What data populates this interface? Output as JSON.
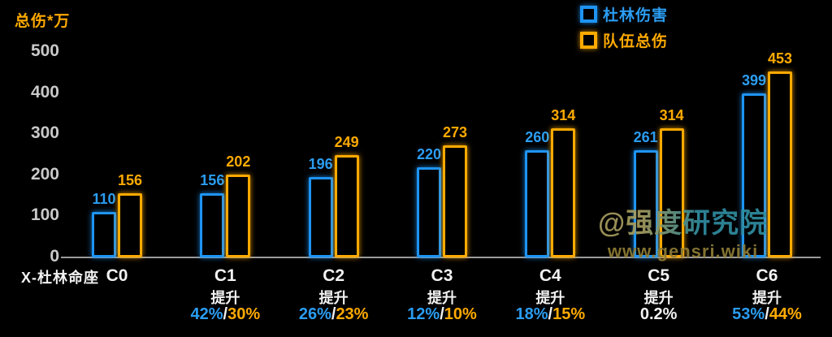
{
  "y_axis": {
    "title": "总伤*万",
    "ticks": [
      0,
      100,
      200,
      300,
      400,
      500
    ]
  },
  "x_axis": {
    "title": "X-杜林命座"
  },
  "legend": [
    {
      "label": "杜林伤害",
      "color": "#1e94f4"
    },
    {
      "label": "队伍总伤",
      "color": "#ffaa00"
    }
  ],
  "watermark": {
    "line1": "@强度研究院",
    "line2": "www.gensri.wiki"
  },
  "colors": {
    "blue": "#1e94f4",
    "orange": "#ffaa00",
    "tick": "#c9c9c9",
    "background": "#000000"
  },
  "chart_data": {
    "type": "bar",
    "title": "",
    "categories": [
      "C0",
      "C1",
      "C2",
      "C3",
      "C4",
      "C5",
      "C6"
    ],
    "series": [
      {
        "name": "杜林伤害",
        "color": "#1e94f4",
        "values": [
          110,
          156,
          196,
          220,
          260,
          261,
          399
        ]
      },
      {
        "name": "队伍总伤",
        "color": "#ffaa00",
        "values": [
          156,
          202,
          249,
          273,
          314,
          314,
          453
        ]
      }
    ],
    "ylabel": "总伤*万",
    "xlabel": "X-杜林命座",
    "ylim": [
      0,
      500
    ],
    "grid": false,
    "legend_position": "top-right",
    "bar_style": "outlined-neon-on-black",
    "uplift_label": "提升",
    "uplifts": [
      {
        "show": false
      },
      {
        "show": true,
        "blue": "42%",
        "sep": "/",
        "orange": "30%"
      },
      {
        "show": true,
        "blue": "26%",
        "sep": "/",
        "orange": "23%"
      },
      {
        "show": true,
        "blue": "12%",
        "sep": "/",
        "orange": "10%"
      },
      {
        "show": true,
        "blue": "18%",
        "sep": "/",
        "orange": "15%"
      },
      {
        "show": true,
        "plain": "0.2%"
      },
      {
        "show": true,
        "blue": "53%",
        "sep": "/",
        "orange": "44%"
      }
    ]
  }
}
